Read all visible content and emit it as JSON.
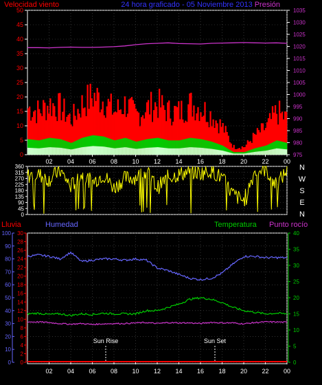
{
  "header": {
    "left_label": "Velocidad viento",
    "title": "24 hora graficado - 05 Noviembre 2013",
    "right_label": "Presión"
  },
  "colors": {
    "wind": "#ff0000",
    "gust": "#00cc00",
    "wind_light": "#ccffcc",
    "pressure": "#cc33cc",
    "direction": "#ffff00",
    "humidity": "#6666ff",
    "temperature": "#00cc00",
    "dewpoint": "#cc33cc",
    "rain": "#ff0000",
    "axis": "#ffffff",
    "grid": "#555555"
  },
  "hour_ticks": [
    "02",
    "04",
    "06",
    "08",
    "10",
    "12",
    "14",
    "16",
    "18",
    "20",
    "22",
    "00"
  ],
  "panel1": {
    "wind_ticks": [
      "0",
      "5",
      "10",
      "15",
      "20",
      "25",
      "30",
      "35",
      "40",
      "45",
      "50"
    ],
    "pressure_ticks": [
      "975",
      "980",
      "985",
      "990",
      "995",
      "1000",
      "1005",
      "1010",
      "1015",
      "1020",
      "1025",
      "1030",
      "1035"
    ]
  },
  "panel2": {
    "deg_ticks": [
      "0",
      "45",
      "90",
      "135",
      "180",
      "225",
      "270",
      "315",
      "360"
    ],
    "compass": [
      "N",
      "W",
      "S",
      "E",
      "N"
    ]
  },
  "panel3": {
    "labels": {
      "rain": "Lluvia",
      "humidity": "Humedad",
      "temperature": "Temperatura",
      "dewpoint": "Punto rocío"
    },
    "humidity_ticks": [
      "0",
      "10",
      "20",
      "30",
      "40",
      "50",
      "60",
      "70",
      "80",
      "90",
      "100"
    ],
    "rain_ticks": [
      "0",
      "2",
      "4",
      "6",
      "8",
      "10",
      "12",
      "14",
      "16",
      "18",
      "20",
      "22",
      "24",
      "26",
      "28",
      "30"
    ],
    "temp_ticks": [
      "0",
      "5",
      "10",
      "15",
      "20",
      "25",
      "30",
      "35",
      "40"
    ],
    "sunrise": "Sun Rise",
    "sunset": "Sun Set"
  },
  "chart_data": [
    {
      "type": "area",
      "title": "24 hora graficado - 05 Noviembre 2013",
      "xlabel": "",
      "x": [
        "00",
        "01",
        "02",
        "03",
        "04",
        "05",
        "06",
        "07",
        "08",
        "09",
        "10",
        "11",
        "12",
        "13",
        "14",
        "15",
        "16",
        "17",
        "18",
        "19",
        "20",
        "21",
        "22",
        "23",
        "00"
      ],
      "series": [
        {
          "name": "Velocidad viento",
          "axis": "left",
          "unit": "km/h",
          "values": [
            12,
            11,
            13,
            12,
            9,
            13,
            15,
            14,
            11,
            13,
            10,
            12,
            13,
            11,
            11,
            13,
            12,
            10,
            7,
            2,
            2,
            5,
            7,
            11,
            9
          ]
        },
        {
          "name": "Presión",
          "axis": "right",
          "unit": "hPa",
          "values": [
            1019.5,
            1019.5,
            1019.4,
            1019.6,
            1019.7,
            1019.6,
            1019.6,
            1019.7,
            1019.9,
            1020.2,
            1020.7,
            1021.1,
            1021.3,
            1021.5,
            1021.2,
            1021.1,
            1021.0,
            1021.3,
            1021.4,
            1021.5,
            1021.6,
            1021.5,
            1021.4,
            1021.5,
            1021.3
          ]
        }
      ],
      "ylim_left": [
        0,
        50
      ],
      "ylim_right": [
        975,
        1035
      ],
      "grid": true
    },
    {
      "type": "line",
      "title": "",
      "x": [
        "00",
        "01",
        "02",
        "03",
        "04",
        "05",
        "06",
        "07",
        "08",
        "09",
        "10",
        "11",
        "12",
        "13",
        "14",
        "15",
        "16",
        "17",
        "18",
        "19",
        "20",
        "21",
        "22",
        "23",
        "00"
      ],
      "series": [
        {
          "name": "",
          "unit": "degrees",
          "values": [
            290,
            300,
            260,
            330,
            210,
            300,
            240,
            300,
            200,
            270,
            280,
            320,
            200,
            280,
            300,
            320,
            310,
            330,
            270,
            150,
            100,
            320,
            340,
            220,
            330
          ]
        }
      ],
      "ylim": [
        0,
        360
      ],
      "grid": true
    },
    {
      "type": "line",
      "title": "",
      "x": [
        "00",
        "01",
        "02",
        "03",
        "04",
        "05",
        "06",
        "07",
        "08",
        "09",
        "10",
        "11",
        "12",
        "13",
        "14",
        "15",
        "16",
        "17",
        "18",
        "19",
        "20",
        "21",
        "22",
        "23",
        "00"
      ],
      "series": [
        {
          "name": "Humedad",
          "axis": "left-outer",
          "unit": "%",
          "values": [
            82,
            83,
            82,
            80,
            85,
            78,
            79,
            80,
            80,
            79,
            80,
            79,
            73,
            71,
            68,
            65,
            64,
            65,
            69,
            76,
            82,
            82,
            81,
            81,
            81
          ]
        },
        {
          "name": "Temperatura",
          "axis": "right",
          "unit": "°C",
          "values": [
            15,
            15.2,
            14.8,
            15,
            14.5,
            15,
            14.8,
            15.2,
            15,
            15,
            15,
            16,
            16,
            17,
            18,
            19.5,
            20,
            19.5,
            18.5,
            17,
            16,
            15.5,
            15,
            15.2,
            15
          ]
        },
        {
          "name": "Punto rocío",
          "axis": "right",
          "unit": "°C",
          "values": [
            12.5,
            12.5,
            12.3,
            12,
            11.8,
            12,
            11.7,
            11.9,
            12,
            12,
            12.2,
            12.3,
            12,
            12.3,
            12.2,
            12.2,
            12,
            12.4,
            12.2,
            12.2,
            11.9,
            12.3,
            12.5,
            12.5,
            12.4
          ]
        },
        {
          "name": "Lluvia",
          "axis": "left-inner",
          "unit": "mm",
          "values": [
            0,
            0,
            0,
            0,
            0,
            0,
            0,
            0,
            0,
            0,
            0,
            0,
            0,
            0,
            0,
            0,
            0,
            0,
            0,
            0,
            0,
            0,
            0,
            0,
            0
          ]
        }
      ],
      "ylim_humidity": [
        0,
        100
      ],
      "ylim_rain": [
        0,
        30
      ],
      "ylim_temperature": [
        0,
        40
      ],
      "grid": true
    }
  ]
}
